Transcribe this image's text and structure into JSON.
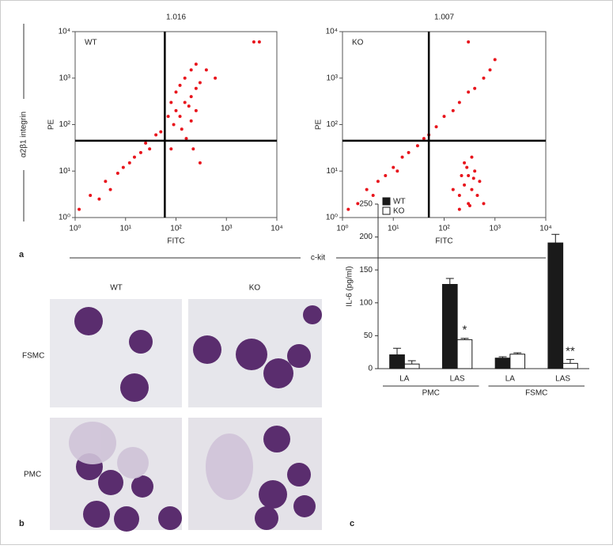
{
  "figure": {
    "panel_labels": [
      "a",
      "b",
      "c"
    ],
    "shared_x_label": "c-kit",
    "shared_y_label": "α2β1 integrin",
    "micrographs": {
      "columns": [
        "WT",
        "KO"
      ],
      "rows": [
        "FSMC",
        "PMC"
      ]
    }
  },
  "chart_data": [
    {
      "type": "scatter",
      "title": "1.016",
      "annotation": "WT",
      "x_label": "FITC",
      "y_label": "PE",
      "color": "#e8141c",
      "log_x": true,
      "log_y": true,
      "xlim": [
        1,
        10000
      ],
      "ylim": [
        1,
        10000
      ],
      "xticks": [
        {
          "value": 1,
          "label": "10⁰"
        },
        {
          "value": 10,
          "label": "10¹"
        },
        {
          "value": 100,
          "label": "10²"
        },
        {
          "value": 1000,
          "label": "10³"
        },
        {
          "value": 10000,
          "label": "10⁴"
        }
      ],
      "yticks": [
        {
          "value": 1,
          "label": "10⁰"
        },
        {
          "value": 10,
          "label": "10¹"
        },
        {
          "value": 100,
          "label": "10²"
        },
        {
          "value": 1000,
          "label": "10³"
        },
        {
          "value": 10000,
          "label": "10⁴"
        }
      ],
      "quadrant": {
        "x": 60,
        "y": 45
      },
      "x": [
        1.2,
        2,
        3,
        4,
        5,
        7,
        9,
        12,
        15,
        20,
        25,
        30,
        40,
        50,
        70,
        80,
        100,
        120,
        150,
        200,
        250,
        100,
        150,
        200,
        120,
        180,
        250,
        300,
        90,
        130,
        200,
        160,
        220,
        300,
        400,
        3500,
        4500,
        600,
        80,
        250
      ],
      "y": [
        1.5,
        3,
        2.5,
        6,
        4,
        9,
        12,
        15,
        20,
        25,
        40,
        30,
        60,
        70,
        150,
        300,
        500,
        700,
        1000,
        1500,
        2000,
        200,
        300,
        400,
        150,
        250,
        600,
        800,
        100,
        80,
        120,
        50,
        30,
        15,
        1500,
        6000,
        6000,
        1000,
        30,
        200
      ]
    },
    {
      "type": "scatter",
      "title": "1.007",
      "annotation": "KO",
      "x_label": "FITC",
      "y_label": "PE",
      "color": "#e8141c",
      "log_x": true,
      "log_y": true,
      "xlim": [
        1,
        10000
      ],
      "ylim": [
        1,
        10000
      ],
      "xticks": [
        {
          "value": 1,
          "label": "10⁰"
        },
        {
          "value": 10,
          "label": "10¹"
        },
        {
          "value": 100,
          "label": "10²"
        },
        {
          "value": 1000,
          "label": "10³"
        },
        {
          "value": 10000,
          "label": "10⁴"
        }
      ],
      "yticks": [
        {
          "value": 1,
          "label": "10⁰"
        },
        {
          "value": 10,
          "label": "10¹"
        },
        {
          "value": 100,
          "label": "10²"
        },
        {
          "value": 1000,
          "label": "10³"
        },
        {
          "value": 10000,
          "label": "10⁴"
        }
      ],
      "quadrant": {
        "x": 50,
        "y": 45
      },
      "x": [
        1.3,
        2,
        3,
        4,
        5,
        7,
        10,
        12,
        15,
        20,
        30,
        40,
        50,
        70,
        100,
        150,
        200,
        300,
        400,
        600,
        800,
        1000,
        300,
        200,
        250,
        300,
        350,
        400,
        250,
        300,
        200,
        450,
        500,
        350,
        150,
        280,
        320,
        380,
        220,
        600
      ],
      "y": [
        1.5,
        2,
        4,
        3,
        6,
        8,
        12,
        10,
        20,
        25,
        35,
        50,
        60,
        90,
        150,
        200,
        300,
        500,
        600,
        1000,
        1500,
        2500,
        6000,
        3,
        5,
        8,
        4,
        10,
        15,
        2,
        1.5,
        3,
        6,
        20,
        4,
        12,
        1.8,
        7,
        8,
        2
      ]
    },
    {
      "type": "bar",
      "y_label": "IL-6 (pg/ml)",
      "ylim": [
        0,
        250
      ],
      "yticks": [
        0,
        50,
        100,
        150,
        200,
        250
      ],
      "categories": [
        "LA",
        "LAS",
        "LA",
        "LAS"
      ],
      "groups": [
        "PMC",
        "FSMC"
      ],
      "series": [
        {
          "name": "WT",
          "color": "#1a1a1a",
          "values": [
            21,
            128,
            16,
            191
          ],
          "errors": [
            10,
            9,
            2,
            13
          ]
        },
        {
          "name": "KO",
          "color": "#ffffff",
          "values": [
            7,
            44,
            22,
            8
          ],
          "errors": [
            5,
            2,
            2,
            6
          ],
          "significance": [
            null,
            "*",
            null,
            "**"
          ]
        }
      ]
    }
  ]
}
